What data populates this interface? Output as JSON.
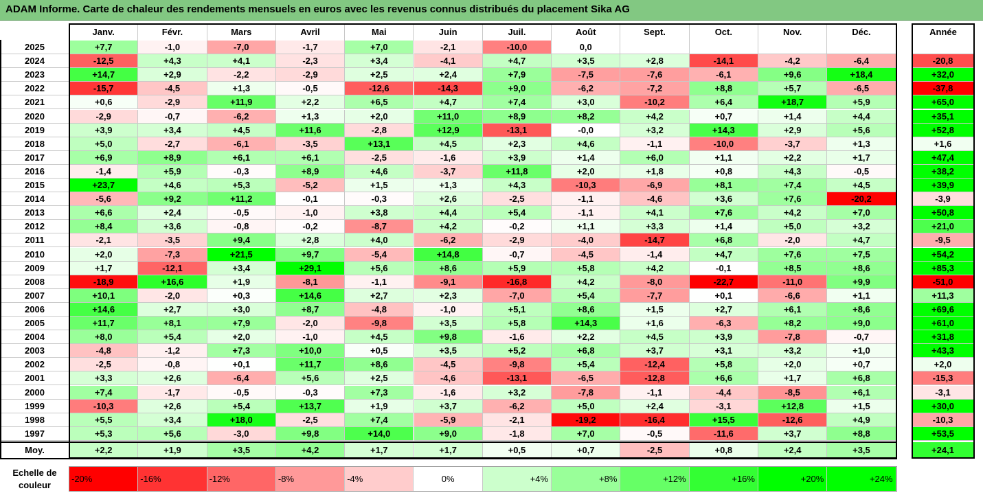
{
  "title": "ADAM Informe. Carte de chaleur des rendements mensuels en euros avec les revenus connus distribués du placement Sika AG",
  "chart_data": {
    "type": "heatmap",
    "title": "ADAM Informe. Carte de chaleur des rendements mensuels en euros avec les revenus connus distribués du placement Sika AG",
    "columns": [
      "Janv.",
      "Févr.",
      "Mars",
      "Avril",
      "Mai",
      "Juin",
      "Juil.",
      "Août",
      "Sept.",
      "Oct.",
      "Nov.",
      "Déc."
    ],
    "annual_header": "Année",
    "rows": [
      {
        "year": "2025",
        "values": [
          "+7,7",
          "-1,0",
          "-7,0",
          "-1,7",
          "+7,0",
          "-2,1",
          "-10,0",
          "0,0",
          "",
          "",
          "",
          ""
        ],
        "annual": ""
      },
      {
        "year": "2024",
        "values": [
          "-12,5",
          "+4,3",
          "+4,1",
          "-2,3",
          "+3,4",
          "-4,1",
          "+4,7",
          "+3,5",
          "+2,8",
          "-14,1",
          "-4,2",
          "-6,4"
        ],
        "annual": "-20,8"
      },
      {
        "year": "2023",
        "values": [
          "+14,7",
          "+2,9",
          "-2,2",
          "-2,9",
          "+2,5",
          "+2,4",
          "+7,9",
          "-7,5",
          "-7,6",
          "-6,1",
          "+9,6",
          "+18,4"
        ],
        "annual": "+32,0"
      },
      {
        "year": "2022",
        "values": [
          "-15,7",
          "-4,5",
          "+1,3",
          "-0,5",
          "-12,6",
          "-14,3",
          "+9,0",
          "-6,2",
          "-7,2",
          "+8,8",
          "+5,7",
          "-6,5"
        ],
        "annual": "-37,8"
      },
      {
        "year": "2021",
        "values": [
          "+0,6",
          "-2,9",
          "+11,9",
          "+2,2",
          "+6,5",
          "+4,7",
          "+7,4",
          "+3,0",
          "-10,2",
          "+6,4",
          "+18,7",
          "+5,9"
        ],
        "annual": "+65,0"
      },
      {
        "year": "2020",
        "values": [
          "-2,9",
          "-0,7",
          "-6,2",
          "+1,3",
          "+2,0",
          "+11,0",
          "+8,9",
          "+8,2",
          "+4,2",
          "+0,7",
          "+1,4",
          "+4,4"
        ],
        "annual": "+35,1"
      },
      {
        "year": "2019",
        "values": [
          "+3,9",
          "+3,4",
          "+4,5",
          "+11,6",
          "-2,8",
          "+12,9",
          "-13,1",
          "-0,0",
          "+3,2",
          "+14,3",
          "+2,9",
          "+5,6"
        ],
        "annual": "+52,8"
      },
      {
        "year": "2018",
        "values": [
          "+5,0",
          "-2,7",
          "-6,1",
          "-3,5",
          "+13,1",
          "+4,5",
          "+2,3",
          "+4,6",
          "-1,1",
          "-10,0",
          "-3,7",
          "+1,3"
        ],
        "annual": "+1,6"
      },
      {
        "year": "2017",
        "values": [
          "+6,9",
          "+8,9",
          "+6,1",
          "+6,1",
          "-2,5",
          "-1,6",
          "+3,9",
          "+1,4",
          "+6,0",
          "+1,1",
          "+2,2",
          "+1,7"
        ],
        "annual": "+47,4"
      },
      {
        "year": "2016",
        "values": [
          "-1,4",
          "+5,9",
          "-0,3",
          "+8,9",
          "+4,6",
          "-3,7",
          "+11,8",
          "+2,0",
          "+1,8",
          "+0,8",
          "+4,3",
          "-0,5"
        ],
        "annual": "+38,2"
      },
      {
        "year": "2015",
        "values": [
          "+23,7",
          "+4,6",
          "+5,3",
          "-5,2",
          "+1,5",
          "+1,3",
          "+4,3",
          "-10,3",
          "-6,9",
          "+8,1",
          "+7,4",
          "+4,5"
        ],
        "annual": "+39,9"
      },
      {
        "year": "2014",
        "values": [
          "-5,6",
          "+9,2",
          "+11,2",
          "-0,1",
          "-0,3",
          "+2,6",
          "-2,5",
          "-1,1",
          "-4,6",
          "+3,6",
          "+7,6",
          "-20,2"
        ],
        "annual": "-3,9"
      },
      {
        "year": "2013",
        "values": [
          "+6,6",
          "+2,4",
          "-0,5",
          "-1,0",
          "+3,8",
          "+4,4",
          "+5,4",
          "-1,1",
          "+4,1",
          "+7,6",
          "+4,2",
          "+7,0"
        ],
        "annual": "+50,8"
      },
      {
        "year": "2012",
        "values": [
          "+8,4",
          "+3,6",
          "-0,8",
          "-0,2",
          "-8,7",
          "+4,2",
          "-0,2",
          "+1,1",
          "+3,3",
          "+1,4",
          "+5,0",
          "+3,2"
        ],
        "annual": "+21,0"
      },
      {
        "year": "2011",
        "values": [
          "-2,1",
          "-3,5",
          "+9,4",
          "+2,8",
          "+4,0",
          "-6,2",
          "-2,9",
          "-4,0",
          "-14,7",
          "+6,8",
          "-2,0",
          "+4,7"
        ],
        "annual": "-9,5"
      },
      {
        "year": "2010",
        "values": [
          "+2,0",
          "-7,3",
          "+21,5",
          "+9,7",
          "-5,4",
          "+14,8",
          "-0,7",
          "-4,5",
          "-1,4",
          "+4,7",
          "+7,6",
          "+7,5"
        ],
        "annual": "+54,2"
      },
      {
        "year": "2009",
        "values": [
          "+1,7",
          "-12,1",
          "+3,4",
          "+29,1",
          "+5,6",
          "+8,6",
          "+5,9",
          "+5,8",
          "+4,2",
          "-0,1",
          "+8,5",
          "+8,6"
        ],
        "annual": "+85,3"
      },
      {
        "year": "2008",
        "values": [
          "-18,9",
          "+16,6",
          "+1,9",
          "-8,1",
          "-1,1",
          "-9,1",
          "-16,8",
          "+4,2",
          "-8,0",
          "-22,7",
          "-11,0",
          "+9,9"
        ],
        "annual": "-51,0"
      },
      {
        "year": "2007",
        "values": [
          "+10,1",
          "-2,0",
          "+0,3",
          "+14,6",
          "+2,7",
          "+2,3",
          "-7,0",
          "+5,4",
          "-7,7",
          "+0,1",
          "-6,6",
          "+1,1"
        ],
        "annual": "+11,3"
      },
      {
        "year": "2006",
        "values": [
          "+14,6",
          "+2,7",
          "+3,0",
          "+8,7",
          "-4,8",
          "-1,0",
          "+5,1",
          "+8,6",
          "+1,5",
          "+2,7",
          "+6,1",
          "+8,6"
        ],
        "annual": "+69,6"
      },
      {
        "year": "2005",
        "values": [
          "+11,7",
          "+8,1",
          "+7,9",
          "-2,0",
          "-9,8",
          "+3,5",
          "+5,8",
          "+14,3",
          "+1,6",
          "-6,3",
          "+8,2",
          "+9,0"
        ],
        "annual": "+61,0"
      },
      {
        "year": "2004",
        "values": [
          "+8,0",
          "+5,4",
          "+2,0",
          "-1,0",
          "+4,5",
          "+9,8",
          "-1,6",
          "+2,2",
          "+4,5",
          "+3,9",
          "-7,8",
          "-0,7"
        ],
        "annual": "+31,8"
      },
      {
        "year": "2003",
        "values": [
          "-4,8",
          "-1,2",
          "+7,3",
          "+10,0",
          "+0,5",
          "+3,5",
          "+5,2",
          "+6,8",
          "+3,7",
          "+3,1",
          "+3,2",
          "+1,0"
        ],
        "annual": "+43,3"
      },
      {
        "year": "2002",
        "values": [
          "-2,5",
          "-0,8",
          "+0,1",
          "+11,7",
          "+8,6",
          "-4,5",
          "-9,8",
          "+5,4",
          "-12,4",
          "+5,8",
          "+2,0",
          "+0,7"
        ],
        "annual": "+2,0"
      },
      {
        "year": "2001",
        "values": [
          "+3,3",
          "+2,6",
          "-6,4",
          "+5,6",
          "+2,5",
          "-4,6",
          "-13,1",
          "-6,5",
          "-12,8",
          "+6,6",
          "+1,7",
          "+6,8"
        ],
        "annual": "-15,3"
      },
      {
        "year": "2000",
        "values": [
          "+7,4",
          "-1,7",
          "-0,5",
          "-0,3",
          "+7,3",
          "-1,6",
          "+3,2",
          "-7,8",
          "-1,1",
          "-4,4",
          "-8,5",
          "+6,1"
        ],
        "annual": "-3,1"
      },
      {
        "year": "1999",
        "values": [
          "-10,3",
          "+2,6",
          "+5,4",
          "+13,7",
          "+1,9",
          "+3,7",
          "-6,2",
          "+5,0",
          "+2,4",
          "-3,1",
          "+12,8",
          "+1,5"
        ],
        "annual": "+30,0"
      },
      {
        "year": "1998",
        "values": [
          "+5,5",
          "+3,4",
          "+18,0",
          "-2,5",
          "+7,4",
          "-5,9",
          "-2,1",
          "-19,2",
          "-16,4",
          "+15,5",
          "-12,6",
          "+4,9"
        ],
        "annual": "-10,3"
      },
      {
        "year": "1997",
        "values": [
          "+5,3",
          "+5,6",
          "-3,0",
          "+9,8",
          "+14,0",
          "+9,0",
          "-1,8",
          "+7,0",
          "-0,5",
          "-11,6",
          "+3,7",
          "+8,8"
        ],
        "annual": "+53,5"
      }
    ],
    "average": {
      "label": "Moy.",
      "values": [
        "+2,2",
        "+1,9",
        "+3,5",
        "+4,2",
        "+1,7",
        "+1,7",
        "+0,5",
        "+0,7",
        "-2,5",
        "+0,8",
        "+2,4",
        "+3,5"
      ],
      "annual": "+24,1"
    },
    "legend": {
      "label_line1": "Echelle de",
      "label_line2": "couleur",
      "steps": [
        "-20%",
        "-16%",
        "-12%",
        "-8%",
        "-4%",
        "0%",
        "+4%",
        "+8%",
        "+12%",
        "+16%",
        "+20%",
        "+24%"
      ]
    },
    "color_scale": {
      "negative_max": "#ff0000",
      "zero": "#ffffff",
      "positive_max": "#00ff00"
    }
  }
}
